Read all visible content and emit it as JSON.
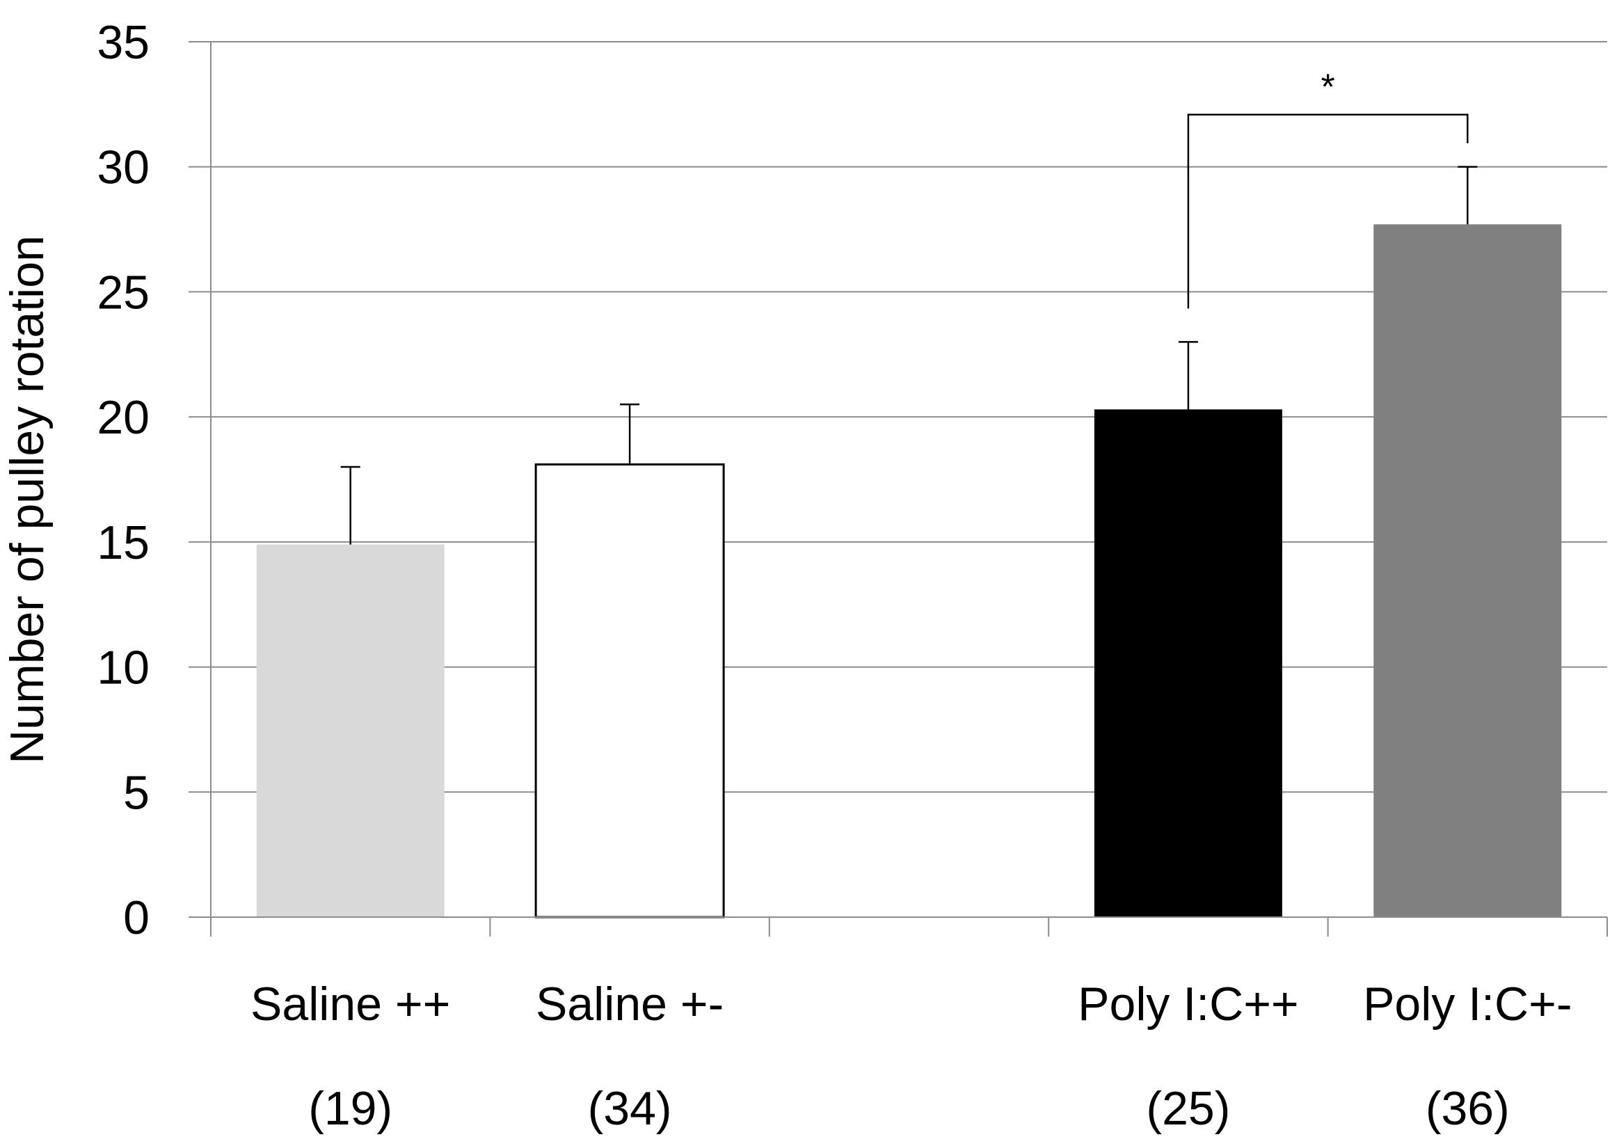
{
  "chart_data": {
    "type": "bar",
    "title": "",
    "xlabel": "",
    "ylabel": "Number of pulley rotation",
    "ylim": [
      0,
      35
    ],
    "yticks": [
      0,
      5,
      10,
      15,
      20,
      25,
      30,
      35
    ],
    "grid": true,
    "slots": [
      "Saline ++",
      "Saline +-",
      "",
      "Poly I:C++",
      "Poly I:C+-"
    ],
    "categories": [
      "Saline ++",
      "Saline +-",
      "Poly I:C++",
      "Poly I:C+-"
    ],
    "sample_sizes": [
      "(19)",
      "(34)",
      "(25)",
      "(36)"
    ],
    "values": [
      14.9,
      18.1,
      20.3,
      27.7
    ],
    "errors": [
      3.1,
      2.4,
      2.7,
      2.3
    ],
    "colors": [
      "#d9d9d9",
      "#ffffff",
      "#000000",
      "#808080"
    ],
    "significance": [
      {
        "from": "Poly I:C++",
        "to": "Poly I:C+-",
        "label": "*"
      }
    ]
  }
}
